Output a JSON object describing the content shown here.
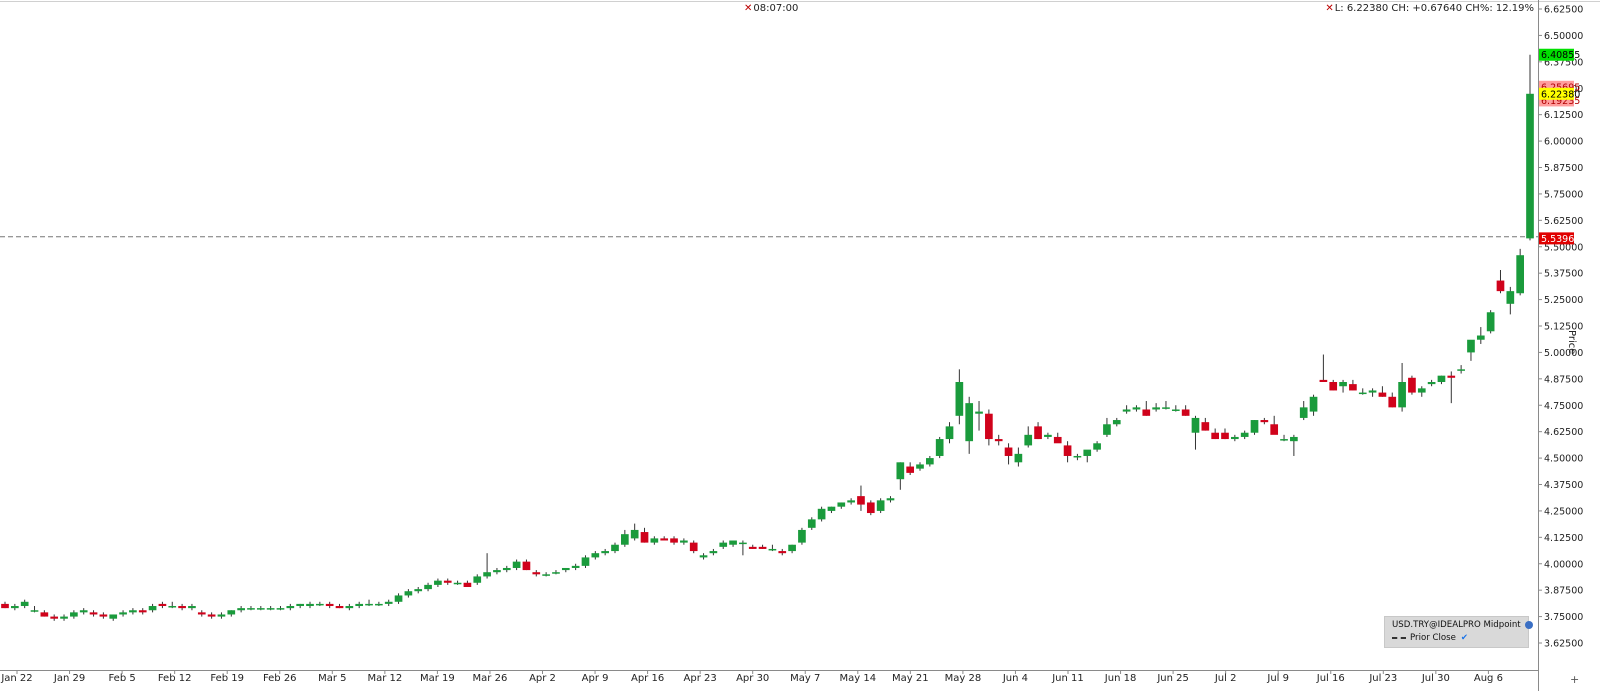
{
  "header": {
    "time_text": "08:07:00",
    "stats_text": "L: 6.22380 CH: +0.67640 CH%: 12.19%"
  },
  "legend": {
    "symbol_text": "USD.TRY@IDEALPRO Midpoint",
    "prior_close_text": "Prior Close"
  },
  "colors": {
    "up": "#1a9b3c",
    "down": "#d0021b",
    "prior_close_line": "#777777"
  },
  "chart_data": {
    "type": "candlestick",
    "ylabel": "Price",
    "ylim": [
      3.53,
      6.655
    ],
    "y_ticks": [
      "6.62500",
      "6.50000",
      "6.37500",
      "6.25000",
      "6.12500",
      "6.00000",
      "5.87500",
      "5.75000",
      "5.62500",
      "5.50000",
      "5.37500",
      "5.25000",
      "5.12500",
      "5.00000",
      "4.87500",
      "4.75000",
      "4.62500",
      "4.50000",
      "4.37500",
      "4.25000",
      "4.12500",
      "4.00000",
      "3.87500",
      "3.75000",
      "3.62500"
    ],
    "x_tick_labels": [
      "Jan 22",
      "Jan 29",
      "Feb 5",
      "Feb 12",
      "Feb 19",
      "Feb 26",
      "Mar 5",
      "Mar 12",
      "Mar 19",
      "Mar 26",
      "Apr 2",
      "Apr 9",
      "Apr 16",
      "Apr 23",
      "Apr 30",
      "May 7",
      "May 14",
      "May 21",
      "May 28",
      "Jun 4",
      "Jun 11",
      "Jun 18",
      "Jun 25",
      "Jul 2",
      "Jul 9",
      "Jul 16",
      "Jul 23",
      "Jul 30",
      "Aug 6"
    ],
    "prior_close": 5.5474,
    "price_labels": [
      {
        "text": "6.40855",
        "value": 6.40855,
        "bg": "#00e000",
        "fg": "#000000"
      },
      {
        "text": "6.25695",
        "value": 6.25695,
        "bg": "#ff9d9d",
        "fg": "#b00000"
      },
      {
        "text": "6.19235",
        "value": 6.19235,
        "bg": "#ff9d9d",
        "fg": "#b00000"
      },
      {
        "text": "6.22380",
        "value": 6.2238,
        "bg": "#ffff00",
        "fg": "#000000"
      },
      {
        "text": "5.53965",
        "value": 5.53965,
        "bg": "#e00000",
        "fg": "#ffffff"
      }
    ],
    "candles": [
      [
        3.81,
        3.82,
        3.79,
        3.79
      ],
      [
        3.79,
        3.81,
        3.78,
        3.8
      ],
      [
        3.8,
        3.83,
        3.79,
        3.82
      ],
      [
        3.78,
        3.8,
        3.77,
        3.78
      ],
      [
        3.77,
        3.78,
        3.75,
        3.75
      ],
      [
        3.75,
        3.76,
        3.73,
        3.74
      ],
      [
        3.74,
        3.76,
        3.73,
        3.75
      ],
      [
        3.75,
        3.78,
        3.74,
        3.77
      ],
      [
        3.77,
        3.79,
        3.76,
        3.78
      ],
      [
        3.77,
        3.78,
        3.75,
        3.76
      ],
      [
        3.76,
        3.77,
        3.74,
        3.75
      ],
      [
        3.74,
        3.76,
        3.73,
        3.76
      ],
      [
        3.76,
        3.78,
        3.75,
        3.77
      ],
      [
        3.77,
        3.79,
        3.76,
        3.78
      ],
      [
        3.78,
        3.79,
        3.76,
        3.77
      ],
      [
        3.78,
        3.81,
        3.77,
        3.8
      ],
      [
        3.81,
        3.82,
        3.79,
        3.8
      ],
      [
        3.8,
        3.82,
        3.79,
        3.8
      ],
      [
        3.8,
        3.81,
        3.78,
        3.79
      ],
      [
        3.79,
        3.81,
        3.78,
        3.8
      ],
      [
        3.77,
        3.78,
        3.75,
        3.76
      ],
      [
        3.76,
        3.77,
        3.74,
        3.75
      ],
      [
        3.75,
        3.77,
        3.74,
        3.76
      ],
      [
        3.76,
        3.78,
        3.75,
        3.78
      ],
      [
        3.78,
        3.8,
        3.77,
        3.79
      ],
      [
        3.79,
        3.8,
        3.78,
        3.79
      ],
      [
        3.79,
        3.8,
        3.78,
        3.79
      ],
      [
        3.79,
        3.8,
        3.78,
        3.79
      ],
      [
        3.79,
        3.8,
        3.78,
        3.79
      ],
      [
        3.79,
        3.81,
        3.78,
        3.8
      ],
      [
        3.8,
        3.81,
        3.79,
        3.81
      ],
      [
        3.8,
        3.82,
        3.79,
        3.81
      ],
      [
        3.81,
        3.82,
        3.8,
        3.81
      ],
      [
        3.81,
        3.82,
        3.79,
        3.8
      ],
      [
        3.8,
        3.81,
        3.79,
        3.79
      ],
      [
        3.79,
        3.81,
        3.78,
        3.8
      ],
      [
        3.8,
        3.82,
        3.79,
        3.81
      ],
      [
        3.81,
        3.83,
        3.8,
        3.81
      ],
      [
        3.81,
        3.82,
        3.8,
        3.81
      ],
      [
        3.81,
        3.83,
        3.8,
        3.82
      ],
      [
        3.82,
        3.86,
        3.81,
        3.85
      ],
      [
        3.85,
        3.88,
        3.84,
        3.87
      ],
      [
        3.87,
        3.89,
        3.86,
        3.88
      ],
      [
        3.88,
        3.91,
        3.87,
        3.9
      ],
      [
        3.9,
        3.93,
        3.89,
        3.92
      ],
      [
        3.92,
        3.93,
        3.9,
        3.91
      ],
      [
        3.91,
        3.92,
        3.9,
        3.91
      ],
      [
        3.91,
        3.92,
        3.89,
        3.89
      ],
      [
        3.91,
        3.95,
        3.9,
        3.94
      ],
      [
        3.94,
        4.05,
        3.93,
        3.96
      ],
      [
        3.96,
        3.98,
        3.95,
        3.97
      ],
      [
        3.97,
        3.99,
        3.96,
        3.98
      ],
      [
        3.98,
        4.02,
        3.97,
        4.01
      ],
      [
        4.01,
        4.02,
        3.97,
        3.97
      ],
      [
        3.96,
        3.97,
        3.94,
        3.95
      ],
      [
        3.95,
        3.96,
        3.94,
        3.95
      ],
      [
        3.96,
        3.97,
        3.95,
        3.96
      ],
      [
        3.97,
        3.98,
        3.96,
        3.98
      ],
      [
        3.98,
        4.0,
        3.97,
        3.99
      ],
      [
        3.99,
        4.04,
        3.98,
        4.03
      ],
      [
        4.03,
        4.06,
        4.02,
        4.05
      ],
      [
        4.05,
        4.07,
        4.04,
        4.06
      ],
      [
        4.06,
        4.1,
        4.05,
        4.09
      ],
      [
        4.09,
        4.16,
        4.08,
        4.14
      ],
      [
        4.12,
        4.19,
        4.11,
        4.16
      ],
      [
        4.15,
        4.17,
        4.1,
        4.1
      ],
      [
        4.1,
        4.13,
        4.09,
        4.12
      ],
      [
        4.12,
        4.13,
        4.11,
        4.11
      ],
      [
        4.12,
        4.13,
        4.09,
        4.1
      ],
      [
        4.1,
        4.12,
        4.09,
        4.11
      ],
      [
        4.1,
        4.11,
        4.05,
        4.06
      ],
      [
        4.03,
        4.05,
        4.02,
        4.04
      ],
      [
        4.05,
        4.07,
        4.04,
        4.06
      ],
      [
        4.08,
        4.11,
        4.07,
        4.1
      ],
      [
        4.09,
        4.11,
        4.08,
        4.11
      ],
      [
        4.1,
        4.11,
        4.04,
        4.1
      ],
      [
        4.08,
        4.09,
        4.07,
        4.07
      ],
      [
        4.08,
        4.09,
        4.07,
        4.07
      ],
      [
        4.07,
        4.09,
        4.06,
        4.07
      ],
      [
        4.06,
        4.07,
        4.04,
        4.05
      ],
      [
        4.06,
        4.09,
        4.05,
        4.09
      ],
      [
        4.1,
        4.17,
        4.09,
        4.16
      ],
      [
        4.17,
        4.22,
        4.16,
        4.21
      ],
      [
        4.21,
        4.27,
        4.2,
        4.26
      ],
      [
        4.25,
        4.27,
        4.24,
        4.27
      ],
      [
        4.27,
        4.29,
        4.26,
        4.29
      ],
      [
        4.29,
        4.31,
        4.28,
        4.3
      ],
      [
        4.32,
        4.37,
        4.25,
        4.28
      ],
      [
        4.29,
        4.3,
        4.23,
        4.24
      ],
      [
        4.25,
        4.31,
        4.24,
        4.3
      ],
      [
        4.3,
        4.32,
        4.29,
        4.31
      ],
      [
        4.4,
        4.48,
        4.35,
        4.48
      ],
      [
        4.46,
        4.48,
        4.42,
        4.43
      ],
      [
        4.45,
        4.48,
        4.44,
        4.47
      ],
      [
        4.47,
        4.51,
        4.46,
        4.5
      ],
      [
        4.51,
        4.6,
        4.5,
        4.59
      ],
      [
        4.59,
        4.67,
        4.57,
        4.65
      ],
      [
        4.7,
        4.92,
        4.66,
        4.86
      ],
      [
        4.58,
        4.79,
        4.52,
        4.76
      ],
      [
        4.71,
        4.77,
        4.63,
        4.72
      ],
      [
        4.71,
        4.73,
        4.56,
        4.59
      ],
      [
        4.59,
        4.61,
        4.56,
        4.58
      ],
      [
        4.55,
        4.57,
        4.47,
        4.51
      ],
      [
        4.48,
        4.55,
        4.46,
        4.52
      ],
      [
        4.56,
        4.65,
        4.55,
        4.61
      ],
      [
        4.65,
        4.67,
        4.59,
        4.59
      ],
      [
        4.6,
        4.62,
        4.59,
        4.61
      ],
      [
        4.6,
        4.62,
        4.58,
        4.57
      ],
      [
        4.56,
        4.58,
        4.48,
        4.51
      ],
      [
        4.51,
        4.52,
        4.49,
        4.51
      ],
      [
        4.51,
        4.53,
        4.48,
        4.54
      ],
      [
        4.54,
        4.58,
        4.53,
        4.57
      ],
      [
        4.61,
        4.69,
        4.6,
        4.66
      ],
      [
        4.66,
        4.69,
        4.65,
        4.68
      ],
      [
        4.72,
        4.75,
        4.71,
        4.73
      ],
      [
        4.73,
        4.75,
        4.72,
        4.74
      ],
      [
        4.73,
        4.77,
        4.7,
        4.7
      ],
      [
        4.73,
        4.76,
        4.72,
        4.74
      ],
      [
        4.74,
        4.77,
        4.73,
        4.74
      ],
      [
        4.73,
        4.75,
        4.72,
        4.73
      ],
      [
        4.73,
        4.75,
        4.7,
        4.7
      ],
      [
        4.62,
        4.7,
        4.54,
        4.69
      ],
      [
        4.67,
        4.69,
        4.63,
        4.63
      ],
      [
        4.62,
        4.64,
        4.59,
        4.59
      ],
      [
        4.62,
        4.64,
        4.59,
        4.59
      ],
      [
        4.59,
        4.61,
        4.58,
        4.6
      ],
      [
        4.6,
        4.63,
        4.59,
        4.62
      ],
      [
        4.62,
        4.68,
        4.61,
        4.68
      ],
      [
        4.68,
        4.69,
        4.66,
        4.67
      ],
      [
        4.66,
        4.7,
        4.63,
        4.61
      ],
      [
        4.59,
        4.61,
        4.58,
        4.59
      ],
      [
        4.58,
        4.61,
        4.51,
        4.6
      ],
      [
        4.69,
        4.77,
        4.68,
        4.74
      ],
      [
        4.72,
        4.8,
        4.7,
        4.79
      ],
      [
        4.87,
        4.99,
        4.86,
        4.86
      ],
      [
        4.86,
        4.87,
        4.82,
        4.82
      ],
      [
        4.84,
        4.87,
        4.81,
        4.86
      ],
      [
        4.85,
        4.87,
        4.82,
        4.82
      ],
      [
        4.81,
        4.83,
        4.8,
        4.81
      ],
      [
        4.81,
        4.83,
        4.79,
        4.82
      ],
      [
        4.81,
        4.84,
        4.79,
        4.79
      ],
      [
        4.79,
        4.81,
        4.74,
        4.74
      ],
      [
        4.74,
        4.95,
        4.72,
        4.86
      ],
      [
        4.88,
        4.89,
        4.8,
        4.81
      ],
      [
        4.81,
        4.84,
        4.79,
        4.83
      ],
      [
        4.85,
        4.87,
        4.84,
        4.86
      ],
      [
        4.86,
        4.89,
        4.85,
        4.89
      ],
      [
        4.89,
        4.91,
        4.76,
        4.88
      ],
      [
        4.92,
        4.94,
        4.9,
        4.92
      ],
      [
        5.0,
        5.05,
        4.96,
        5.06
      ],
      [
        5.06,
        5.12,
        5.04,
        5.08
      ],
      [
        5.1,
        5.2,
        5.09,
        5.19
      ],
      [
        5.34,
        5.39,
        5.28,
        5.29
      ],
      [
        5.23,
        5.31,
        5.18,
        5.29
      ],
      [
        5.28,
        5.49,
        5.27,
        5.46
      ],
      [
        5.53965,
        6.40855,
        5.53,
        6.2238
      ]
    ]
  }
}
